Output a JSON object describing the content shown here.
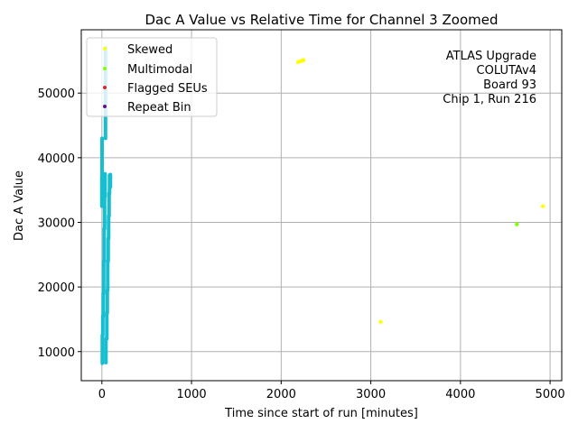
{
  "chart_data": {
    "type": "scatter",
    "title": "Dac A Value vs Relative Time for Channel 3 Zoomed",
    "xlabel": "Time since start of run [minutes]",
    "ylabel": "Dac A Value",
    "xlim": [
      -230,
      5130
    ],
    "ylim": [
      5500,
      59800
    ],
    "xticks": [
      0,
      1000,
      2000,
      3000,
      4000,
      5000
    ],
    "yticks": [
      10000,
      20000,
      30000,
      40000,
      50000
    ],
    "grid": true,
    "legend_position": "top-left",
    "annotation": [
      "ATLAS Upgrade",
      "COLUTAv4",
      "Board 93",
      "Chip 1, Run 216"
    ],
    "series": [
      {
        "name": "Skewed",
        "color": "#ffff00",
        "points": [
          [
            2190,
            54800
          ],
          [
            2210,
            54900
          ],
          [
            2230,
            55000
          ],
          [
            2250,
            55100
          ],
          [
            3110,
            14600
          ],
          [
            4920,
            32500
          ]
        ]
      },
      {
        "name": "Multimodal",
        "color": "#80ff00",
        "points": [
          [
            4630,
            29700
          ]
        ]
      },
      {
        "name": "Flagged SEUs",
        "color": "#d62728",
        "points": []
      },
      {
        "name": "Repeat Bin",
        "color": "#6a0d83",
        "points": []
      }
    ],
    "background_series": {
      "color": "#17becf",
      "segments": [
        {
          "x": 0,
          "y_from": 32500,
          "y_to": 37000
        },
        {
          "x": 2,
          "y_from": 36000,
          "y_to": 43000
        },
        {
          "x": 5,
          "y_from": 8200,
          "y_to": 12500
        },
        {
          "x": 10,
          "y_from": 12500,
          "y_to": 15500
        },
        {
          "x": 15,
          "y_from": 15500,
          "y_to": 19000
        },
        {
          "x": 20,
          "y_from": 19000,
          "y_to": 24000
        },
        {
          "x": 25,
          "y_from": 24000,
          "y_to": 29000
        },
        {
          "x": 30,
          "y_from": 29000,
          "y_to": 34000
        },
        {
          "x": 35,
          "y_from": 34000,
          "y_to": 37500
        },
        {
          "x": 40,
          "y_from": 43000,
          "y_to": 57000
        },
        {
          "x": 45,
          "y_from": 8300,
          "y_to": 12000
        },
        {
          "x": 55,
          "y_from": 12000,
          "y_to": 16000
        },
        {
          "x": 60,
          "y_from": 16000,
          "y_to": 19500
        },
        {
          "x": 65,
          "y_from": 19500,
          "y_to": 24000
        },
        {
          "x": 70,
          "y_from": 24000,
          "y_to": 27500
        },
        {
          "x": 75,
          "y_from": 27500,
          "y_to": 31000
        },
        {
          "x": 80,
          "y_from": 31000,
          "y_to": 34500
        },
        {
          "x": 85,
          "y_from": 34500,
          "y_to": 37300
        },
        {
          "x": 95,
          "y_from": 35500,
          "y_to": 37400
        }
      ]
    }
  }
}
